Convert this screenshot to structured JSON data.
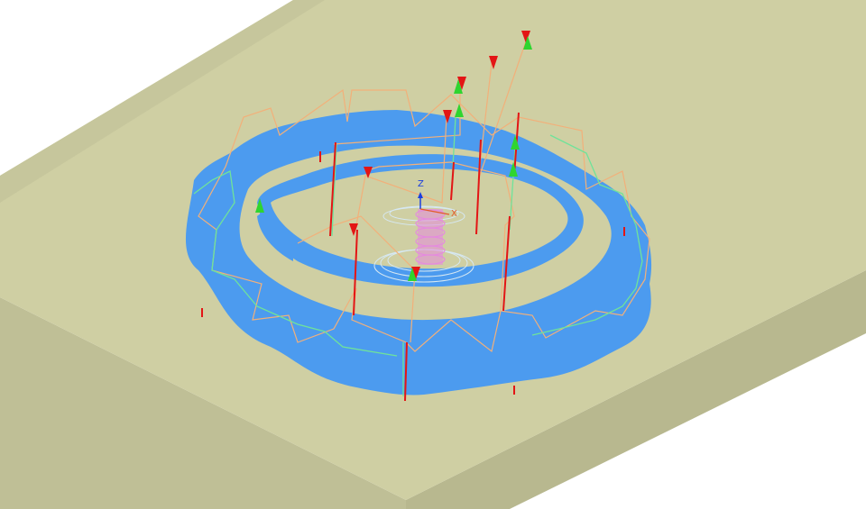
{
  "viewport": {
    "background": "#ffffff"
  },
  "colors": {
    "stock_top": "#cfcfa3",
    "stock_side_left": "#bfbf96",
    "stock_side_right": "#b8b88f",
    "stock_edge": "#d8d8b3",
    "part": "#4c9bef",
    "toolpath_rapid": "#f2b07a",
    "toolpath_cut": "#6fe39a",
    "marker_red": "#e31515",
    "marker_green": "#2fd52f",
    "thread": "#e58adf",
    "axis_z": "#1a3fe0",
    "axis_x": "#e35a2a"
  },
  "triad": {
    "z_label": "Z",
    "x_label": "X"
  },
  "icons": {
    "entry_marker": "red-down-arrow-icon",
    "exit_marker": "green-up-arrow-icon"
  }
}
